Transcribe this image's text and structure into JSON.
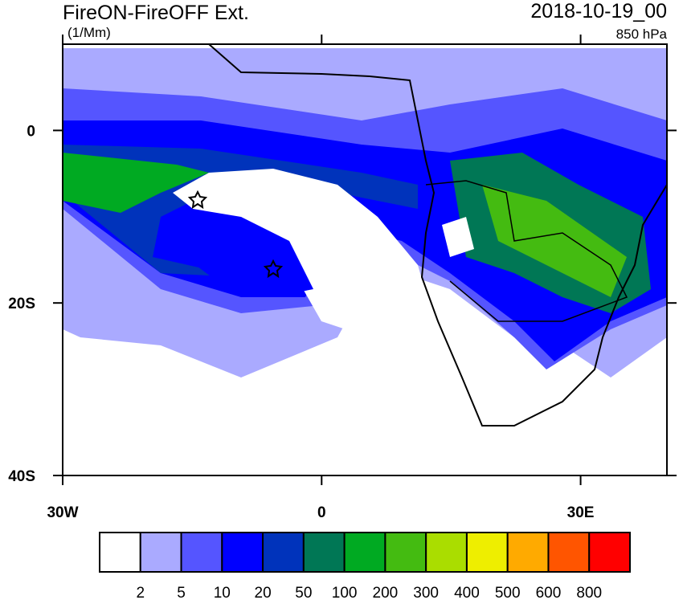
{
  "title": "FireON-FireOFF Ext.",
  "units": "(1/Mm)",
  "date": "2018-10-19_00",
  "level": "850 hPa",
  "map": {
    "lon_range": [
      -30,
      40
    ],
    "lat_range": [
      -40,
      10
    ],
    "lon_ticks": [
      {
        "value": -30,
        "label": "30W"
      },
      0,
      {
        "value": 30,
        "label": "30E"
      }
    ],
    "lat_ticks": [
      0,
      {
        "value": -20,
        "label": "20S"
      },
      {
        "value": -40,
        "label": "40S"
      }
    ]
  },
  "colorbar": {
    "colors": [
      "#ffffff",
      "#aaaaff",
      "#5555ff",
      "#0000ff",
      "#0033bb",
      "#007755",
      "#00aa22",
      "#44bb11",
      "#aadd00",
      "#eeee00",
      "#ffaa00",
      "#ff5500",
      "#ff0000"
    ],
    "levels": [
      2,
      5,
      10,
      20,
      50,
      100,
      200,
      300,
      400,
      500,
      600,
      800
    ]
  }
}
